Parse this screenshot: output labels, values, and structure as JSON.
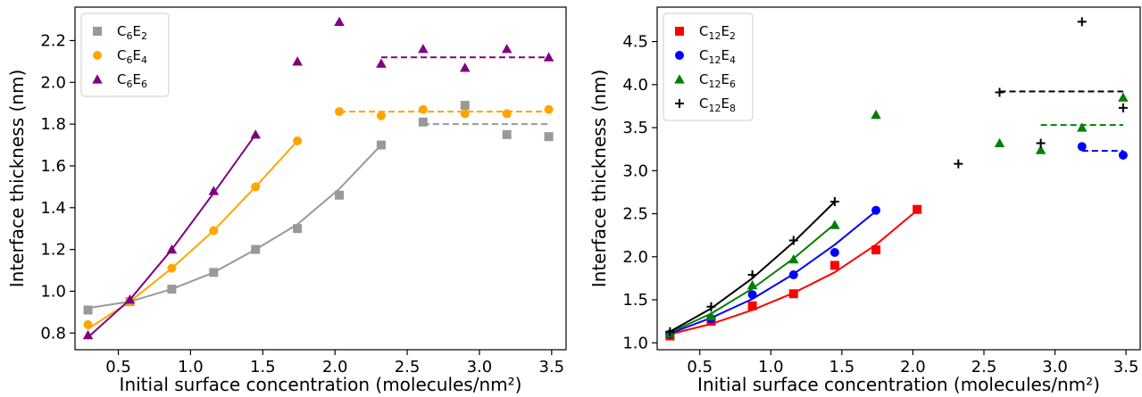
{
  "chart_data": [
    {
      "type": "scatter",
      "xlabel": "Initial surface concentration (molecules/nm²)",
      "ylabel": "Interface thickness (nm)",
      "xlim": [
        0.2,
        3.6
      ],
      "ylim": [
        0.72,
        2.36
      ],
      "xticks": [
        0.5,
        1.0,
        1.5,
        2.0,
        2.5,
        3.0,
        3.5
      ],
      "xtick_labels": [
        "0.5",
        "1.0",
        "1.5",
        "2.0",
        "2.5",
        "3.0",
        "3.5"
      ],
      "yticks": [
        0.8,
        1.0,
        1.2,
        1.4,
        1.6,
        1.8,
        2.0,
        2.2
      ],
      "ytick_labels": [
        "0.8",
        "1.0",
        "1.2",
        "1.4",
        "1.6",
        "1.8",
        "2.0",
        "2.2"
      ],
      "legend_position": "top-left",
      "series": [
        {
          "name": "C6E2",
          "base": "C",
          "sub1": "6",
          "mid": "E",
          "sub2": "2",
          "marker": "square",
          "color": "#999999",
          "x": [
            0.29,
            0.58,
            0.87,
            1.16,
            1.45,
            1.74,
            2.03,
            2.32,
            2.61,
            2.9,
            3.19,
            3.48
          ],
          "y": [
            0.91,
            0.95,
            1.01,
            1.09,
            1.2,
            1.3,
            1.46,
            1.7,
            1.81,
            1.89,
            1.75,
            1.74
          ],
          "fit": [
            [
              0.29,
              0.92
            ],
            [
              0.58,
              0.95
            ],
            [
              0.87,
              1.01
            ],
            [
              1.16,
              1.09
            ],
            [
              1.45,
              1.2
            ],
            [
              1.74,
              1.32
            ],
            [
              2.03,
              1.49
            ],
            [
              2.32,
              1.7
            ]
          ],
          "plateau": {
            "x": [
              2.61,
              3.48
            ],
            "y": 1.8
          }
        },
        {
          "name": "C6E4",
          "base": "C",
          "sub1": "6",
          "mid": "E",
          "sub2": "4",
          "marker": "circle",
          "color": "#ffa500",
          "x": [
            0.29,
            0.58,
            0.87,
            1.16,
            1.45,
            1.74,
            2.03,
            2.32,
            2.61,
            2.9,
            3.19,
            3.48
          ],
          "y": [
            0.84,
            0.95,
            1.11,
            1.29,
            1.5,
            1.72,
            1.86,
            1.84,
            1.87,
            1.85,
            1.85,
            1.87
          ],
          "fit": [
            [
              0.29,
              0.82
            ],
            [
              0.58,
              0.95
            ],
            [
              0.87,
              1.11
            ],
            [
              1.16,
              1.29
            ],
            [
              1.45,
              1.5
            ],
            [
              1.74,
              1.72
            ]
          ],
          "plateau": {
            "x": [
              2.03,
              3.48
            ],
            "y": 1.86
          }
        },
        {
          "name": "C6E6",
          "base": "C",
          "sub1": "6",
          "mid": "E",
          "sub2": "6",
          "marker": "triangle",
          "color": "#800080",
          "x": [
            0.29,
            0.58,
            0.87,
            1.16,
            1.45,
            1.74,
            2.03,
            2.32,
            2.61,
            2.9,
            3.19,
            3.48
          ],
          "y": [
            0.79,
            0.96,
            1.2,
            1.48,
            1.75,
            2.1,
            2.29,
            2.09,
            2.16,
            2.07,
            2.16,
            2.12
          ],
          "fit": [
            [
              0.29,
              0.78
            ],
            [
              0.58,
              0.96
            ],
            [
              0.87,
              1.2
            ],
            [
              1.16,
              1.47
            ],
            [
              1.45,
              1.75
            ]
          ],
          "plateau": {
            "x": [
              2.32,
              3.48
            ],
            "y": 2.12
          }
        }
      ]
    },
    {
      "type": "scatter",
      "xlabel": "Initial surface concentration (molecules/nm²)",
      "ylabel": "Interface thickness (nm)",
      "xlim": [
        0.2,
        3.6
      ],
      "ylim": [
        0.92,
        4.9
      ],
      "xticks": [
        0.5,
        1.0,
        1.5,
        2.0,
        2.5,
        3.0,
        3.5
      ],
      "xtick_labels": [
        "0.5",
        "1.0",
        "1.5",
        "2.0",
        "2.5",
        "3.0",
        "3.5"
      ],
      "yticks": [
        1.0,
        1.5,
        2.0,
        2.5,
        3.0,
        3.5,
        4.0,
        4.5
      ],
      "ytick_labels": [
        "1.0",
        "1.5",
        "2.0",
        "2.5",
        "3.0",
        "3.5",
        "4.0",
        "4.5"
      ],
      "legend_position": "top-left",
      "series": [
        {
          "name": "C12E2",
          "base": "C",
          "sub1": "12",
          "mid": "E",
          "sub2": "2",
          "marker": "square",
          "color": "#ff0000",
          "x": [
            0.29,
            0.58,
            0.87,
            1.16,
            1.45,
            1.74,
            2.03
          ],
          "y": [
            1.08,
            1.25,
            1.43,
            1.57,
            1.9,
            2.08,
            2.55
          ],
          "fit": [
            [
              0.29,
              1.1
            ],
            [
              0.58,
              1.22
            ],
            [
              0.87,
              1.38
            ],
            [
              1.16,
              1.58
            ],
            [
              1.45,
              1.82
            ],
            [
              1.74,
              2.14
            ],
            [
              2.03,
              2.54
            ]
          ],
          "plateau": null
        },
        {
          "name": "C12E4",
          "base": "C",
          "sub1": "12",
          "mid": "E",
          "sub2": "4",
          "marker": "circle",
          "color": "#0000ff",
          "x": [
            0.29,
            0.58,
            0.87,
            1.16,
            1.45,
            1.74,
            3.19,
            3.48
          ],
          "y": [
            1.1,
            1.28,
            1.56,
            1.79,
            2.05,
            2.54,
            3.28,
            3.18
          ],
          "fit": [
            [
              0.29,
              1.11
            ],
            [
              0.58,
              1.29
            ],
            [
              0.87,
              1.51
            ],
            [
              1.16,
              1.8
            ],
            [
              1.45,
              2.14
            ],
            [
              1.74,
              2.53
            ]
          ],
          "plateau": {
            "x": [
              3.19,
              3.48
            ],
            "y": 3.23
          }
        },
        {
          "name": "C12E6",
          "base": "C",
          "sub1": "12",
          "mid": "E",
          "sub2": "6",
          "marker": "triangle",
          "color": "#008000",
          "x": [
            0.29,
            0.58,
            0.87,
            1.16,
            1.45,
            1.74,
            2.61,
            2.9,
            3.19,
            3.48
          ],
          "y": [
            1.11,
            1.31,
            1.67,
            1.97,
            2.37,
            3.65,
            3.32,
            3.24,
            3.5,
            3.85
          ],
          "fit": [
            [
              0.29,
              1.12
            ],
            [
              0.58,
              1.34
            ],
            [
              0.87,
              1.63
            ],
            [
              1.16,
              1.98
            ],
            [
              1.45,
              2.38
            ]
          ],
          "plateau": {
            "x": [
              2.9,
              3.48
            ],
            "y": 3.53
          }
        },
        {
          "name": "C12E8",
          "base": "C",
          "sub1": "12",
          "mid": "E",
          "sub2": "8",
          "marker": "plus",
          "color": "#000000",
          "x": [
            0.29,
            0.58,
            0.87,
            1.16,
            1.45,
            2.32,
            2.61,
            2.9,
            3.19,
            3.48
          ],
          "y": [
            1.13,
            1.42,
            1.79,
            2.19,
            2.64,
            3.08,
            3.91,
            3.32,
            4.73,
            3.73
          ],
          "fit": [
            [
              0.29,
              1.13
            ],
            [
              0.58,
              1.4
            ],
            [
              0.87,
              1.75
            ],
            [
              1.16,
              2.17
            ],
            [
              1.45,
              2.64
            ]
          ],
          "plateau": {
            "x": [
              2.61,
              3.48
            ],
            "y": 3.92
          }
        }
      ]
    }
  ]
}
